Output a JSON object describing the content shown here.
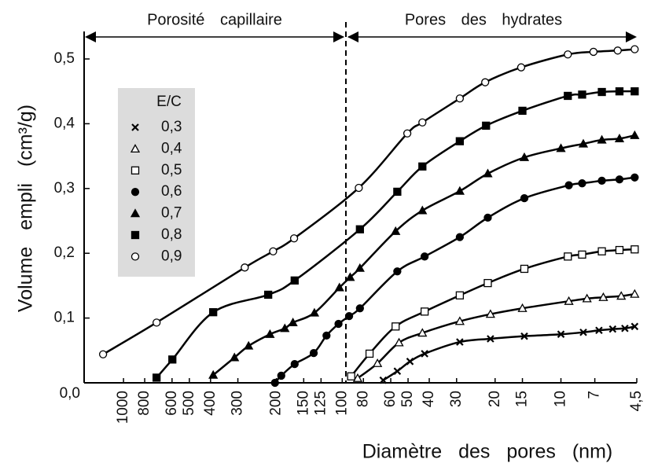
{
  "chart_data": {
    "type": "line",
    "ylabel": "Volume empli (cm³/g)",
    "xlabel": "Diamètre des pores (nm)",
    "annotations": [
      "Porosité capillaire",
      "Pores des hydrates"
    ],
    "legend_title": "E/C",
    "xscale": "log",
    "xlim": [
      1514,
      4.5
    ],
    "xticks": [
      1000,
      800,
      600,
      500,
      400,
      300,
      200,
      150,
      125,
      100,
      80,
      60,
      50,
      40,
      30,
      20,
      15,
      10,
      7,
      {
        "value": 4.5,
        "label": "4,5"
      }
    ],
    "ylim": [
      0,
      0.5
    ],
    "yticks": [
      {
        "value": 0,
        "label": "0,0"
      },
      {
        "value": 0.1,
        "label": "0,1"
      },
      {
        "value": 0.2,
        "label": "0,2"
      },
      {
        "value": 0.3,
        "label": "0,3"
      },
      {
        "value": 0.4,
        "label": "0,4"
      },
      {
        "value": 0.5,
        "label": "0,5"
      }
    ],
    "series": [
      {
        "name": "0,3",
        "marker": "x",
        "color": "#000000",
        "x": [
          65,
          56,
          49,
          42,
          29,
          21,
          14.7,
          10,
          7.9,
          6.7,
          5.8,
          5.1,
          4.6
        ],
        "values": [
          0.004,
          0.018,
          0.033,
          0.045,
          0.063,
          0.068,
          0.072,
          0.075,
          0.078,
          0.081,
          0.083,
          0.084,
          0.087
        ]
      },
      {
        "name": "0,4",
        "marker": "triangle-open",
        "color": "#000000",
        "x": [
          85,
          69,
          55,
          43,
          29,
          21,
          15,
          9.2,
          7.6,
          6.4,
          5.3,
          4.6
        ],
        "values": [
          0.007,
          0.03,
          0.062,
          0.077,
          0.095,
          0.106,
          0.115,
          0.126,
          0.13,
          0.132,
          0.134,
          0.137
        ]
      },
      {
        "name": "0,5",
        "marker": "square-open",
        "color": "#000000",
        "x": [
          91,
          75,
          57,
          42,
          29,
          21.6,
          14.7,
          9.3,
          8,
          6.5,
          5.4,
          4.6
        ],
        "values": [
          0.01,
          0.045,
          0.087,
          0.11,
          0.135,
          0.154,
          0.176,
          0.195,
          0.198,
          0.203,
          0.205,
          0.206
        ]
      },
      {
        "name": "0,6",
        "marker": "circle",
        "color": "#000000",
        "x": [
          203,
          190,
          165,
          135,
          118,
          104,
          93,
          83,
          56,
          42,
          29,
          21.6,
          14.7,
          9.2,
          8,
          6.5,
          5.4,
          4.6
        ],
        "values": [
          0,
          0.011,
          0.029,
          0.046,
          0.073,
          0.091,
          0.103,
          0.115,
          0.172,
          0.195,
          0.225,
          0.255,
          0.285,
          0.305,
          0.308,
          0.312,
          0.314,
          0.317
        ]
      },
      {
        "name": "0,7",
        "marker": "triangle",
        "color": "#000000",
        "x": [
          389,
          311,
          268,
          214,
          183,
          168,
          134,
          103,
          92,
          83,
          57,
          43,
          29,
          21.6,
          14.7,
          10,
          7.9,
          6.5,
          5.4,
          4.6
        ],
        "values": [
          0.012,
          0.039,
          0.057,
          0.075,
          0.084,
          0.093,
          0.108,
          0.147,
          0.163,
          0.177,
          0.234,
          0.266,
          0.296,
          0.323,
          0.348,
          0.362,
          0.369,
          0.375,
          0.377,
          0.382
        ]
      },
      {
        "name": "0,8",
        "marker": "square",
        "color": "#000000",
        "x": [
          706,
          598,
          389,
          218,
          165,
          83,
          56,
          43,
          29,
          22,
          15,
          9.3,
          8,
          6.5,
          5.4,
          4.6
        ],
        "values": [
          0.008,
          0.036,
          0.109,
          0.136,
          0.158,
          0.237,
          0.295,
          0.334,
          0.373,
          0.397,
          0.42,
          0.443,
          0.445,
          0.449,
          0.45,
          0.45
        ]
      },
      {
        "name": "0,9",
        "marker": "circle-open",
        "color": "#000000",
        "x": [
          1240,
          706,
          279,
          207,
          166,
          84,
          50.4,
          43,
          29,
          22.2,
          15.2,
          9.3,
          7.1,
          5.5,
          4.6
        ],
        "values": [
          0.044,
          0.093,
          0.178,
          0.203,
          0.223,
          0.301,
          0.385,
          0.402,
          0.439,
          0.464,
          0.487,
          0.507,
          0.511,
          0.513,
          0.515
        ]
      }
    ]
  }
}
